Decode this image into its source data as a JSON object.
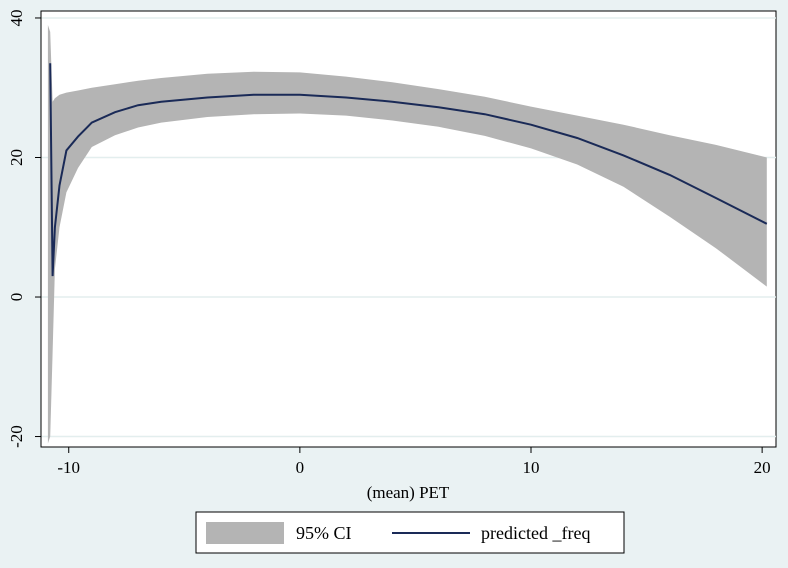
{
  "chart_data": {
    "type": "line",
    "title": "",
    "xlabel": "(mean) PET",
    "ylabel": "",
    "xlim": [
      -11.2,
      20.6
    ],
    "ylim": [
      -21.5,
      41
    ],
    "x_ticks": [
      -10,
      0,
      10,
      20
    ],
    "y_ticks": [
      -20,
      0,
      20,
      40
    ],
    "grid": true,
    "legend_position": "bottom",
    "colors": {
      "background": "#eaf2f3",
      "plot_area": "#ffffff",
      "gridline": "#e3eeee",
      "band": "#b4b4b4",
      "line": "#1a2a57"
    },
    "series": [
      {
        "name": "predicted _freq",
        "kind": "line",
        "x": [
          -10.8,
          -10.7,
          -10.6,
          -10.4,
          -10.1,
          -9.6,
          -9.0,
          -8.0,
          -7.0,
          -6.0,
          -4.0,
          -2.0,
          0.0,
          2.0,
          4.0,
          6.0,
          8.0,
          10.0,
          12.0,
          14.0,
          16.0,
          18.0,
          20.2
        ],
        "y": [
          33.5,
          3.0,
          10.0,
          16.0,
          21.0,
          23.0,
          25.0,
          26.5,
          27.5,
          28.0,
          28.6,
          29.0,
          29.0,
          28.6,
          28.0,
          27.2,
          26.2,
          24.7,
          22.8,
          20.3,
          17.5,
          14.2,
          10.5
        ]
      },
      {
        "name": "95% CI",
        "kind": "band",
        "x": [
          -10.9,
          -10.8,
          -10.7,
          -10.6,
          -10.4,
          -10.1,
          -9.6,
          -9.0,
          -8.0,
          -7.0,
          -6.0,
          -4.0,
          -2.0,
          0.0,
          2.0,
          4.0,
          6.0,
          8.0,
          10.0,
          12.0,
          14.0,
          16.0,
          18.0,
          20.2
        ],
        "upper": [
          39.0,
          38.0,
          28.0,
          28.5,
          29.0,
          29.3,
          29.6,
          30.0,
          30.5,
          31.0,
          31.4,
          32.0,
          32.3,
          32.2,
          31.6,
          30.8,
          29.8,
          28.7,
          27.3,
          26.0,
          24.7,
          23.2,
          21.8,
          20.0
        ],
        "lower": [
          -21.0,
          -20.0,
          -8.0,
          4.0,
          10.0,
          15.0,
          18.5,
          21.5,
          23.2,
          24.3,
          25.0,
          25.8,
          26.2,
          26.3,
          26.0,
          25.3,
          24.4,
          23.1,
          21.3,
          19.0,
          15.8,
          11.5,
          7.0,
          1.5
        ]
      }
    ],
    "legend": [
      {
        "label": "95% CI",
        "kind": "band"
      },
      {
        "label": "predicted _freq",
        "kind": "line"
      }
    ]
  }
}
